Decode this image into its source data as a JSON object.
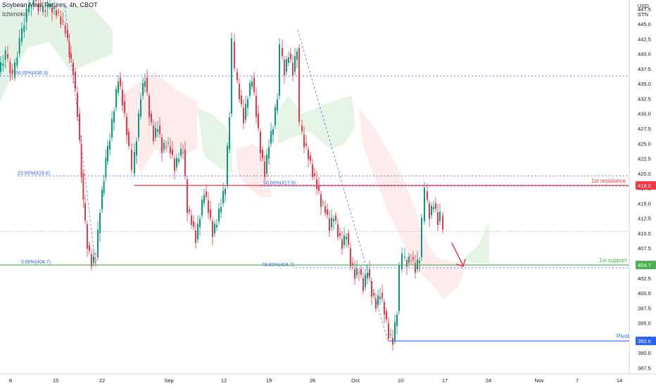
{
  "header": {
    "instrument": "Soybean Meal Futures, 4h, CBOT",
    "indicator": "Ichimoku"
  },
  "axis": {
    "currency": "USD",
    "unit": "STN"
  },
  "chart_data": {
    "type": "candlestick",
    "ylim": [
      386.5,
      449.0
    ],
    "y_ticks": [
      "447.5",
      "445.0",
      "442.5",
      "440.0",
      "437.5",
      "435.0",
      "432.5",
      "430.0",
      "427.5",
      "425.0",
      "422.5",
      "420.0",
      "417.5",
      "415.0",
      "412.5",
      "410.0",
      "407.5",
      "405.0",
      "402.5",
      "400.0",
      "397.5",
      "395.0",
      "392.5",
      "390.0",
      "387.5"
    ],
    "x_ticks": [
      "8",
      "15",
      "22",
      "Sep",
      "12",
      "19",
      "26",
      "Oct",
      "10",
      "17",
      "24",
      "Nov",
      "7",
      "14"
    ],
    "current_price": 410.3,
    "levels": [
      {
        "name": "1st resistance",
        "price": 418.0,
        "tag": "418.0",
        "color": "#f23645"
      },
      {
        "name": "1st support",
        "price": 404.7,
        "tag": "404.7",
        "color": "#4caf50"
      },
      {
        "name": "Pivot",
        "price": 392.0,
        "tag": "392.0",
        "color": "#2962ff"
      }
    ],
    "fib_levels": [
      {
        "label": "50.00%(436.3)",
        "price": 436.3
      },
      {
        "label": "23.60%(419.6)",
        "price": 419.6
      },
      {
        "label": "0.00%(404.7)",
        "price": 404.7
      },
      {
        "label": "50.00%(417.9)",
        "price": 417.9
      },
      {
        "label": "78.60%(404.7)",
        "price": 404.7
      }
    ],
    "annotation": "projected move down toward 1st support"
  }
}
